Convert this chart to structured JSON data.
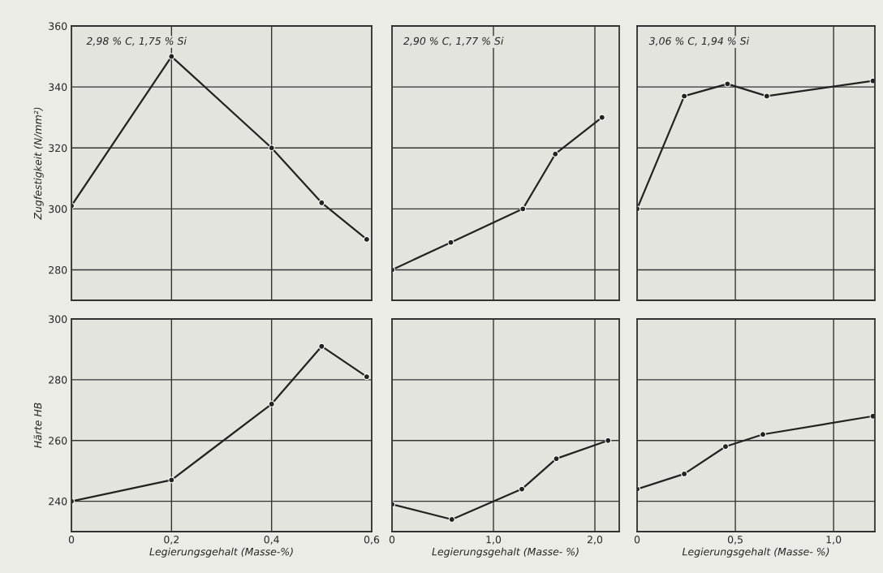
{
  "chart_data": [
    {
      "type": "line",
      "title": "2,98 % C, 1,75 % Si",
      "ylabel": "Zugfestigkeit (N/mm²)",
      "x": [
        0,
        0.2,
        0.4,
        0.5,
        0.59
      ],
      "values": [
        301,
        350,
        320,
        302,
        290
      ],
      "color": "#222222",
      "marker": "circle",
      "line_style": "solid",
      "grid": true,
      "xlim": [
        0,
        0.6
      ],
      "xticks": [
        {
          "value": 0,
          "label": null
        },
        {
          "value": 0.2,
          "label": null
        },
        {
          "value": 0.4,
          "label": null
        },
        {
          "value": 0.6,
          "label": null
        }
      ],
      "ylim": [
        270,
        360
      ],
      "yticks": [
        280,
        300,
        320,
        340,
        360
      ],
      "tick_labels": "y"
    },
    {
      "type": "line",
      "title": "2,90 % C, 1,77 % Si",
      "x": [
        0,
        0.58,
        1.29,
        1.61,
        2.07
      ],
      "values": [
        280,
        289,
        300,
        318,
        330
      ],
      "color": "#222222",
      "marker": "circle",
      "line_style": "solid",
      "grid": true,
      "xlim": [
        0,
        2.24
      ],
      "xticks": [
        {
          "value": 0,
          "label": null
        },
        {
          "value": 1.0,
          "label": null
        },
        {
          "value": 2.0,
          "label": null
        }
      ],
      "ylim": [
        270,
        360
      ],
      "yticks": [
        {
          "value": 280,
          "label": null
        },
        {
          "value": 300,
          "label": null
        },
        {
          "value": 320,
          "label": null
        },
        {
          "value": 340,
          "label": null
        },
        {
          "value": 360,
          "label": null
        }
      ],
      "tick_labels": false
    },
    {
      "type": "line",
      "title": "3,06 % C, 1,94 % Si",
      "x": [
        0,
        0.24,
        0.46,
        0.66,
        1.2
      ],
      "values": [
        300,
        337,
        341,
        337,
        342
      ],
      "color": "#222222",
      "marker": "circle",
      "line_style": "solid",
      "grid": true,
      "xlim": [
        0,
        1.21
      ],
      "xticks": [
        {
          "value": 0,
          "label": null
        },
        {
          "value": 0.5,
          "label": null
        },
        {
          "value": 1.0,
          "label": null
        }
      ],
      "ylim": [
        270,
        360
      ],
      "yticks": [
        {
          "value": 280,
          "label": null
        },
        {
          "value": 300,
          "label": null
        },
        {
          "value": 320,
          "label": null
        },
        {
          "value": 340,
          "label": null
        },
        {
          "value": 360,
          "label": null
        }
      ],
      "tick_labels": false
    },
    {
      "type": "line",
      "xlabel": "Legierungsgehalt (Masse-%)",
      "ylabel": "Härte HB",
      "x": [
        0,
        0.2,
        0.4,
        0.5,
        0.59
      ],
      "values": [
        240,
        247,
        272,
        291,
        281
      ],
      "color": "#222222",
      "marker": "circle",
      "line_style": "solid",
      "grid": true,
      "xlim": [
        0,
        0.6
      ],
      "xticks": [
        0,
        {
          "value": 0.2,
          "label": "0,2"
        },
        {
          "value": 0.4,
          "label": "0,4"
        },
        {
          "value": 0.6,
          "label": "0,6"
        }
      ],
      "ylim": [
        230,
        300
      ],
      "yticks": [
        240,
        260,
        280,
        300
      ]
    },
    {
      "type": "line",
      "xlabel": "Legierungsgehalt (Masse- %)",
      "x": [
        0,
        0.59,
        1.28,
        1.62,
        2.13
      ],
      "values": [
        239,
        234,
        244,
        254,
        260
      ],
      "color": "#222222",
      "marker": "circle",
      "line_style": "solid",
      "grid": true,
      "xlim": [
        0,
        2.24
      ],
      "xticks": [
        0,
        {
          "value": 1.0,
          "label": "1,0"
        },
        {
          "value": 2.0,
          "label": "2,0"
        }
      ],
      "ylim": [
        230,
        300
      ],
      "yticks": [
        {
          "value": 240,
          "label": null
        },
        {
          "value": 260,
          "label": null
        },
        {
          "value": 280,
          "label": null
        },
        {
          "value": 300,
          "label": null
        }
      ],
      "tick_labels": "x"
    },
    {
      "type": "line",
      "xlabel": "Legierungsgehalt (Masse- %)",
      "x": [
        0,
        0.24,
        0.45,
        0.64,
        1.2
      ],
      "values": [
        244,
        249,
        258,
        262,
        268
      ],
      "color": "#222222",
      "marker": "circle",
      "line_style": "solid",
      "grid": true,
      "xlim": [
        0,
        1.21
      ],
      "xticks": [
        0,
        {
          "value": 0.5,
          "label": "0,5"
        },
        {
          "value": 1.0,
          "label": "1,0"
        }
      ],
      "ylim": [
        230,
        300
      ],
      "yticks": [
        {
          "value": 240,
          "label": null
        },
        {
          "value": 260,
          "label": null
        },
        {
          "value": 280,
          "label": null
        },
        {
          "value": 300,
          "label": null
        }
      ],
      "tick_labels": "x"
    }
  ]
}
